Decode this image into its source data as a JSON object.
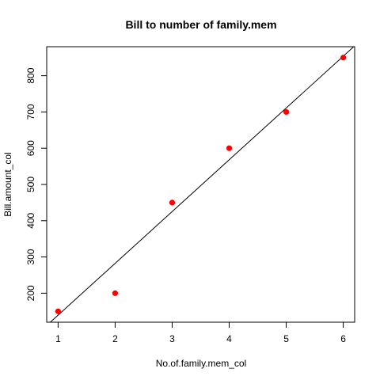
{
  "chart_data": {
    "type": "scatter",
    "title": "Bill to number of family.mem",
    "xlabel": "No.of.family.mem_col",
    "ylabel": "Bill.amount_col",
    "xlim": [
      0.8,
      6.2
    ],
    "ylim": [
      120,
      880
    ],
    "x_ticks": [
      1,
      2,
      3,
      4,
      5,
      6
    ],
    "y_ticks": [
      200,
      300,
      400,
      500,
      600,
      700,
      800
    ],
    "points": {
      "x": [
        1,
        2,
        3,
        4,
        5,
        6
      ],
      "y": [
        150,
        200,
        450,
        600,
        700,
        850
      ],
      "color": "#ff0000"
    },
    "fit_line": {
      "intercept": -3.33,
      "slope": 142.86,
      "color": "#000000"
    },
    "grid": false
  }
}
